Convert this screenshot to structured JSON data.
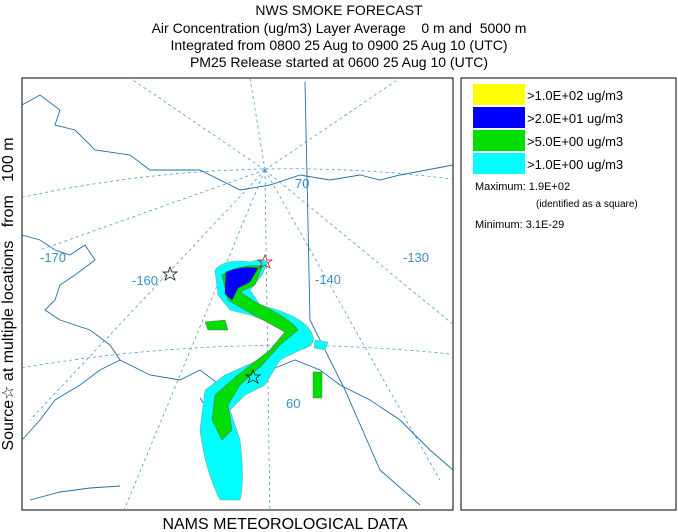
{
  "header": {
    "title": "NWS SMOKE FORECAST",
    "lines": [
      "Air Concentration (ug/m3) Layer Average    0 m and  5000 m",
      "Integrated from 0800 25 Aug to 0900 25 Aug 10 (UTC)",
      "PM25 Release started at 0600 25 Aug 10 (UTC)"
    ]
  },
  "side_label": "Source☆ at multiple locations   from   100 m",
  "legend": {
    "entries": [
      {
        "label": ">1.0E+02 ug/m3",
        "color": "#ffff00"
      },
      {
        "label": ">2.0E+01 ug/m3",
        "color": "#0000ff"
      },
      {
        "label": ">5.0E+00 ug/m3",
        "color": "#00dd00"
      },
      {
        "label": ">1.0E+00 ug/m3",
        "color": "#00ffff"
      }
    ],
    "maximum": "Maximum: 1.9E+02",
    "maximum_note": "(identified as a square)",
    "minimum": "Minimum: 3.1E-29"
  },
  "map": {
    "graticule_labels": [
      "-170",
      "-160",
      "-140",
      "-130",
      "70",
      "60"
    ]
  },
  "footer": "NAMS METEOROLOGICAL DATA"
}
